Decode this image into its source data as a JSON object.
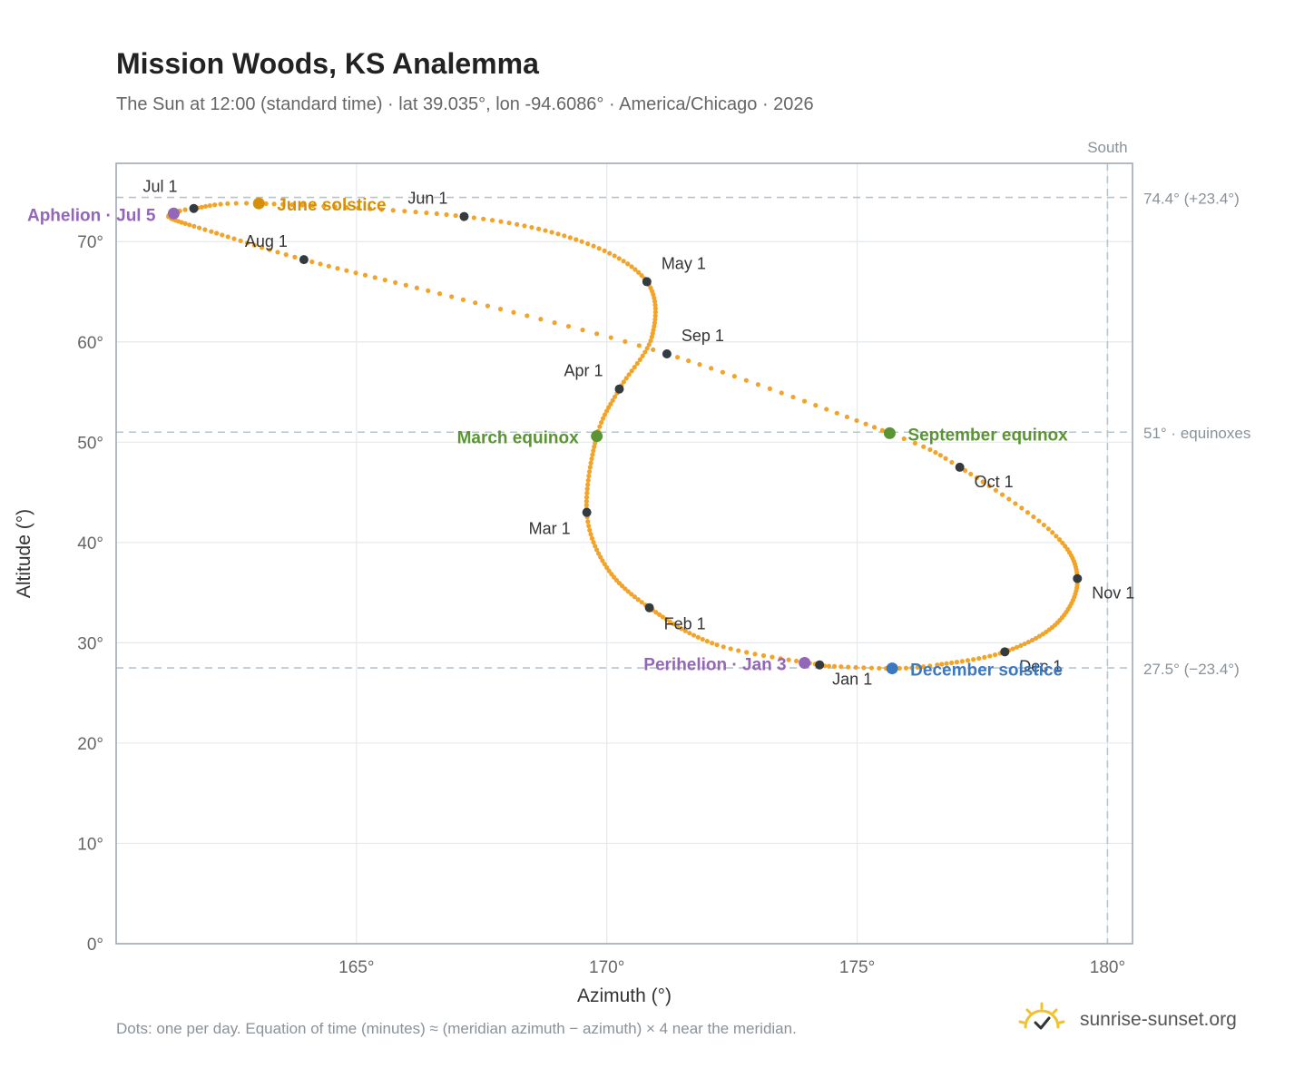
{
  "title": "Mission Woods, KS Analemma",
  "subtitle": "The Sun at 12:00 (standard time) · lat 39.035°, lon -94.6086° · America/Chicago · 2026",
  "footnote": "Dots: one per day. Equation of time (minutes) ≈ (meridian azimuth − azimuth) × 4 near the meridian.",
  "brand": "sunrise-sunset.org",
  "colors": {
    "path": "#f2a42a",
    "month": "#333a40",
    "solstice_june": "#d4900a",
    "solstice_dec": "#3a78c2",
    "equinox": "#5a9433",
    "apsis": "#9466b8",
    "ref_line": "#b8c4cc",
    "grid": "#e6e9ec",
    "axis": "#9aa4ae",
    "tick": "#666666"
  },
  "chart_data": {
    "type": "scatter",
    "xlabel": "Azimuth (°)",
    "ylabel": "Altitude (°)",
    "xlim": [
      160.2,
      180.5
    ],
    "ylim": [
      0,
      77.8
    ],
    "xticks": [
      {
        "value": 165,
        "label": "165°"
      },
      {
        "value": 170,
        "label": "170°"
      },
      {
        "value": 175,
        "label": "175°"
      },
      {
        "value": 180,
        "label": "180°"
      }
    ],
    "yticks": [
      {
        "value": 0,
        "label": "0°"
      },
      {
        "value": 10,
        "label": "10°"
      },
      {
        "value": 20,
        "label": "20°"
      },
      {
        "value": 30,
        "label": "30°"
      },
      {
        "value": 40,
        "label": "40°"
      },
      {
        "value": 50,
        "label": "50°"
      },
      {
        "value": 60,
        "label": "60°"
      },
      {
        "value": 70,
        "label": "70°"
      }
    ],
    "grid": true,
    "reference_lines": [
      {
        "axis": "y",
        "value": 74.4,
        "label": "74.4° (+23.4°)"
      },
      {
        "axis": "y",
        "value": 51.0,
        "label": "51° · equinoxes"
      },
      {
        "axis": "y",
        "value": 27.5,
        "label": "27.5° (−23.4°)"
      },
      {
        "axis": "x",
        "value": 180,
        "label": "South"
      }
    ],
    "path_anchors": [
      {
        "day": 1,
        "az": 174.25,
        "alt": 27.8
      },
      {
        "day": 15,
        "az": 172.2,
        "alt": 29.8
      },
      {
        "day": 32,
        "az": 170.85,
        "alt": 33.5
      },
      {
        "day": 46,
        "az": 170.0,
        "alt": 37.5
      },
      {
        "day": 60,
        "az": 169.6,
        "alt": 43.0
      },
      {
        "day": 79,
        "az": 169.8,
        "alt": 50.6
      },
      {
        "day": 91,
        "az": 170.25,
        "alt": 55.3
      },
      {
        "day": 105,
        "az": 170.9,
        "alt": 60.5
      },
      {
        "day": 121,
        "az": 170.8,
        "alt": 66.0
      },
      {
        "day": 136,
        "az": 169.5,
        "alt": 70.0
      },
      {
        "day": 152,
        "az": 167.15,
        "alt": 72.5
      },
      {
        "day": 172,
        "az": 163.05,
        "alt": 73.8
      },
      {
        "day": 182,
        "az": 161.75,
        "alt": 73.3
      },
      {
        "day": 186,
        "az": 161.35,
        "alt": 72.8
      },
      {
        "day": 190,
        "az": 161.3,
        "alt": 72.3
      },
      {
        "day": 200,
        "az": 162.1,
        "alt": 71.0
      },
      {
        "day": 213,
        "az": 163.95,
        "alt": 68.2
      },
      {
        "day": 228,
        "az": 166.9,
        "alt": 64.5
      },
      {
        "day": 244,
        "az": 171.2,
        "alt": 58.8
      },
      {
        "day": 265,
        "az": 175.65,
        "alt": 50.9
      },
      {
        "day": 274,
        "az": 177.05,
        "alt": 47.5
      },
      {
        "day": 290,
        "az": 178.9,
        "alt": 41.0
      },
      {
        "day": 305,
        "az": 179.4,
        "alt": 36.4
      },
      {
        "day": 320,
        "az": 179.0,
        "alt": 32.0
      },
      {
        "day": 335,
        "az": 177.95,
        "alt": 29.1
      },
      {
        "day": 348,
        "az": 176.6,
        "alt": 27.8
      },
      {
        "day": 355,
        "az": 175.7,
        "alt": 27.45
      },
      {
        "day": 365,
        "az": 174.35,
        "alt": 27.7
      }
    ],
    "months": [
      {
        "label": "Jan 1",
        "az": 174.25,
        "alt": 27.8,
        "anchor": "start",
        "dx": 14,
        "dy": 22
      },
      {
        "label": "Feb 1",
        "az": 170.85,
        "alt": 33.5,
        "anchor": "start",
        "dx": 16,
        "dy": 24
      },
      {
        "label": "Mar 1",
        "az": 169.6,
        "alt": 43.0,
        "anchor": "end",
        "dx": -18,
        "dy": 24
      },
      {
        "label": "Apr 1",
        "az": 170.25,
        "alt": 55.3,
        "anchor": "end",
        "dx": -18,
        "dy": -14
      },
      {
        "label": "May 1",
        "az": 170.8,
        "alt": 66.0,
        "anchor": "start",
        "dx": 16,
        "dy": -14
      },
      {
        "label": "Jun 1",
        "az": 167.15,
        "alt": 72.5,
        "anchor": "end",
        "dx": -18,
        "dy": -14
      },
      {
        "label": "Jul 1",
        "az": 161.75,
        "alt": 73.3,
        "anchor": "end",
        "dx": -18,
        "dy": -18
      },
      {
        "label": "Aug 1",
        "az": 163.95,
        "alt": 68.2,
        "anchor": "end",
        "dx": -18,
        "dy": -14
      },
      {
        "label": "Sep 1",
        "az": 171.2,
        "alt": 58.8,
        "anchor": "start",
        "dx": 16,
        "dy": -14
      },
      {
        "label": "Oct 1",
        "az": 177.05,
        "alt": 47.5,
        "anchor": "start",
        "dx": 16,
        "dy": 22
      },
      {
        "label": "Nov 1",
        "az": 179.4,
        "alt": 36.4,
        "anchor": "start",
        "dx": 16,
        "dy": 22
      },
      {
        "label": "Dec 1",
        "az": 177.95,
        "alt": 29.1,
        "anchor": "start",
        "dx": 16,
        "dy": 22
      }
    ],
    "events": [
      {
        "label": "June solstice",
        "az": 163.05,
        "alt": 73.8,
        "color_key": "solstice_june",
        "anchor": "start",
        "dx": 20,
        "dy": 8
      },
      {
        "label": "December solstice",
        "az": 175.7,
        "alt": 27.45,
        "color_key": "solstice_dec",
        "anchor": "start",
        "dx": 20,
        "dy": 8
      },
      {
        "label": "March equinox",
        "az": 169.8,
        "alt": 50.6,
        "color_key": "equinox",
        "anchor": "end",
        "dx": -20,
        "dy": 8
      },
      {
        "label": "September equinox",
        "az": 175.65,
        "alt": 50.9,
        "color_key": "equinox",
        "anchor": "start",
        "dx": 20,
        "dy": 8
      },
      {
        "label": "Aphelion · Jul 5",
        "az": 161.35,
        "alt": 72.8,
        "color_key": "apsis",
        "anchor": "end",
        "dx": -20,
        "dy": 8
      },
      {
        "label": "Perihelion · Jan 3",
        "az": 173.95,
        "alt": 28.0,
        "color_key": "apsis",
        "anchor": "end",
        "dx": -20,
        "dy": 8
      }
    ]
  }
}
